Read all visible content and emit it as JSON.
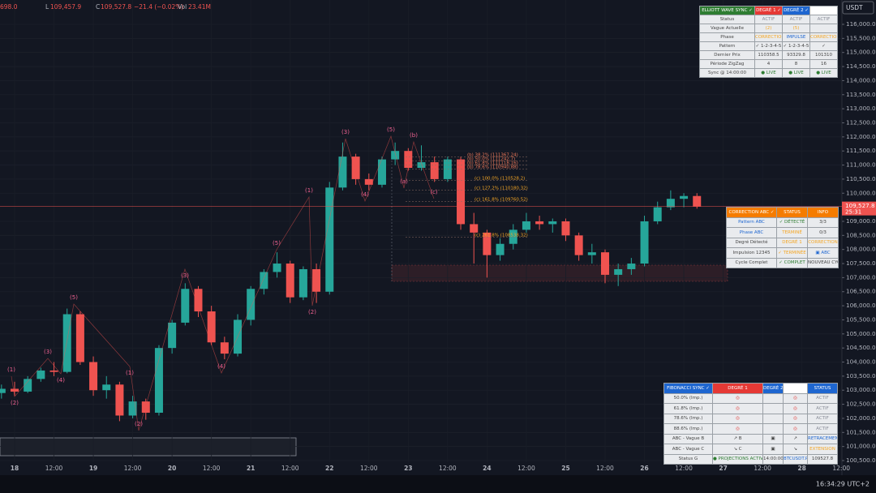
{
  "header": {
    "items": [
      "698.0",
      "L",
      "109,457.9",
      "C",
      "109,527.8",
      "−21.4 (−0.02%)",
      "Vol",
      "23.41M"
    ]
  },
  "currency": "USDT",
  "clock": "16:34:29 UTC+2",
  "chart_data": {
    "type": "candlestick",
    "x": [
      -4,
      0,
      4,
      8,
      12,
      16,
      20,
      24,
      28,
      32,
      36,
      40,
      44,
      48,
      52,
      56,
      60,
      64,
      68,
      72,
      76,
      80,
      84,
      88,
      92,
      96,
      100,
      104,
      108,
      112,
      116,
      120,
      124,
      128,
      132,
      136,
      140,
      144,
      148,
      152,
      156,
      160,
      164,
      168,
      172,
      176,
      180,
      184,
      188,
      192,
      196,
      200,
      204,
      208
    ],
    "open": [
      102900,
      103050,
      102950,
      103400,
      103700,
      103650,
      105700,
      104000,
      103000,
      103200,
      102100,
      102600,
      102200,
      104500,
      105400,
      106600,
      105800,
      104700,
      104300,
      105500,
      106600,
      107200,
      107500,
      106300,
      107300,
      106500,
      110200,
      111300,
      110500,
      110300,
      111200,
      111500,
      110900,
      111100,
      110500,
      111200,
      108900,
      108600,
      107800,
      108200,
      108700,
      109000,
      108900,
      109000,
      108500,
      107800,
      107900,
      107100,
      107300,
      107500,
      109000,
      109500,
      109800,
      109900
    ],
    "high": [
      103200,
      103300,
      103500,
      103800,
      104000,
      105900,
      105800,
      104200,
      103500,
      103300,
      102800,
      102700,
      104600,
      105500,
      106800,
      106700,
      106000,
      104900,
      105700,
      106700,
      107300,
      107900,
      107600,
      107400,
      107500,
      110400,
      111800,
      111400,
      110700,
      111300,
      111800,
      111600,
      111700,
      111300,
      111300,
      111300,
      109300,
      108700,
      108400,
      108900,
      109300,
      109200,
      109100,
      109100,
      108600,
      108200,
      108000,
      107500,
      107700,
      109200,
      109700,
      110100,
      110000,
      110000
    ],
    "low": [
      102700,
      102800,
      102900,
      103300,
      103500,
      103600,
      103900,
      102800,
      102700,
      101900,
      102000,
      101950,
      102100,
      104300,
      105300,
      105600,
      104600,
      104100,
      104200,
      105300,
      106400,
      107000,
      106100,
      106200,
      106100,
      106400,
      110100,
      110300,
      110100,
      110200,
      111000,
      110800,
      110800,
      110400,
      110400,
      108700,
      107500,
      107000,
      107600,
      108000,
      108600,
      108700,
      108600,
      108300,
      107600,
      107500,
      106800,
      106700,
      107100,
      107400,
      108900,
      109400,
      109500,
      109450
    ],
    "close": [
      103050,
      102950,
      103400,
      103700,
      103650,
      105700,
      104000,
      103000,
      103200,
      102100,
      102600,
      102200,
      104500,
      105400,
      106600,
      105800,
      104700,
      104300,
      105500,
      106600,
      107200,
      107500,
      106300,
      107300,
      106500,
      110200,
      111300,
      110500,
      110300,
      111200,
      111500,
      110900,
      111100,
      110500,
      111200,
      108900,
      108600,
      107800,
      108200,
      108700,
      109000,
      108900,
      109000,
      108500,
      107800,
      107900,
      107100,
      107300,
      107500,
      109000,
      109500,
      109800,
      109900,
      109528
    ],
    "up_color": "#26a69a",
    "down_color": "#ef5350",
    "xlim": [
      -4.45,
      252.2
    ],
    "xticks": [
      {
        "value": 0,
        "label": "18"
      },
      {
        "value": 12,
        "label": "12:00"
      },
      {
        "value": 24,
        "label": "19"
      },
      {
        "value": 36,
        "label": "12:00"
      },
      {
        "value": 48,
        "label": "20"
      },
      {
        "value": 60,
        "label": "12:00"
      },
      {
        "value": 72,
        "label": "21"
      },
      {
        "value": 84,
        "label": "12:00"
      },
      {
        "value": 96,
        "label": "22"
      },
      {
        "value": 108,
        "label": "12:00"
      },
      {
        "value": 120,
        "label": "23"
      },
      {
        "value": 132,
        "label": "12:00"
      },
      {
        "value": 144,
        "label": "24"
      },
      {
        "value": 156,
        "label": "12:00"
      },
      {
        "value": 168,
        "label": "25"
      },
      {
        "value": 180,
        "label": "12:00"
      },
      {
        "value": 192,
        "label": "26"
      },
      {
        "value": 204,
        "label": "12:00"
      },
      {
        "value": 216,
        "label": "27"
      },
      {
        "value": 228,
        "label": "12:00"
      },
      {
        "value": 240,
        "label": "28"
      },
      {
        "value": 252,
        "label": "12:00"
      }
    ],
    "ylim": [
      100212,
      116864
    ],
    "yticks": [
      {
        "value": 116000,
        "label": "116,000.0"
      },
      {
        "value": 115500,
        "label": "115,500.0"
      },
      {
        "value": 115000,
        "label": "115,000.0"
      },
      {
        "value": 114500,
        "label": "114,500.0"
      },
      {
        "value": 114000,
        "label": "114,000.0"
      },
      {
        "value": 113500,
        "label": "113,500.0"
      },
      {
        "value": 113000,
        "label": "113,000.0"
      },
      {
        "value": 112500,
        "label": "112,500.0"
      },
      {
        "value": 112000,
        "label": "112,000.0"
      },
      {
        "value": 111500,
        "label": "111,500.0"
      },
      {
        "value": 111000,
        "label": "111,000.0"
      },
      {
        "value": 110500,
        "label": "110,500.0"
      },
      {
        "value": 110000,
        "label": "110,000.0"
      },
      {
        "value": 109000,
        "label": "109,000.0"
      },
      {
        "value": 108500,
        "label": "108,500.0"
      },
      {
        "value": 108000,
        "label": "108,000.0"
      },
      {
        "value": 107500,
        "label": "107,500.0"
      },
      {
        "value": 107000,
        "label": "107,000.0"
      },
      {
        "value": 106500,
        "label": "106,500.0"
      },
      {
        "value": 106000,
        "label": "106,000.0"
      },
      {
        "value": 105500,
        "label": "105,500.0"
      },
      {
        "value": 105000,
        "label": "105,000.0"
      },
      {
        "value": 104500,
        "label": "104,500.0"
      },
      {
        "value": 104000,
        "label": "104,000.0"
      },
      {
        "value": 103500,
        "label": "103,500.0"
      },
      {
        "value": 103000,
        "label": "103,000.0"
      },
      {
        "value": 102500,
        "label": "102,500.0"
      },
      {
        "value": 102000,
        "label": "102,000.0"
      },
      {
        "value": 101500,
        "label": "101,500.0"
      },
      {
        "value": 101000,
        "label": "101,000.0"
      },
      {
        "value": 100500,
        "label": "100,500.0"
      }
    ],
    "grid": true,
    "last_price": {
      "value": 109527.8,
      "label": "109,527.8"
    },
    "countdown": "25:31",
    "wave_labels": [
      "(1)",
      "(2)",
      "(3)",
      "(4)",
      "(5)",
      "(1)",
      "(2)",
      "(3)",
      "(4)",
      "(5)",
      "(1)",
      "(2)",
      "(3)",
      "(4)",
      "(5)",
      "(a)",
      "(b)",
      "(c)"
    ],
    "fib_labels": [
      "(b) 38.2% (111367.24)",
      "(b) 50.0% (111242.7)",
      "(b) 61.8% (111118.16)",
      "(b) 78.6% (110940.88)",
      "(c) 100.0% (110528.2)",
      "(c) 127.2% (110180.32)",
      "(c) 161.8% (109760.52)",
      "(c) 261.8% (108538.32)"
    ]
  },
  "elliott_table": {
    "header": [
      "ELLIOTT WAVE SYNC ✓",
      "DEGRÉ 1 ✓",
      "DEGRÉ 2 ✓",
      null
    ],
    "rows": [
      [
        "Status",
        "ACTIF",
        "ACTIF",
        "ACTIF"
      ],
      [
        "Vague Actuelle",
        "(2)",
        "(5)",
        null
      ],
      [
        "Phase",
        "CORRECTION",
        "IMPULSE",
        "CORRECTION"
      ],
      [
        "Pattern",
        "✓ 1-2-3-4-5",
        "✓ 1-2-3-4-5",
        "✓"
      ],
      [
        "Dernier Prix",
        "110358.5",
        "93329.8",
        "101310"
      ],
      [
        "Période ZigZag",
        "4",
        "8",
        "16"
      ],
      [
        "Sync @ 14:00:00",
        "● LIVE",
        "● LIVE",
        "● LIVE"
      ]
    ]
  },
  "abc_table": {
    "header": [
      "CORRECTION ABC ✓",
      "STATUS",
      "INFO"
    ],
    "rows": [
      [
        "Pattern ABC",
        "✓ DÉTECTÉ",
        "3/3"
      ],
      [
        "Phase ABC",
        "TERMINÉ",
        "0/3"
      ],
      [
        "Degré Détecté",
        "DEGRÉ 1",
        "CORRECTION"
      ],
      [
        "Impulsion 12345",
        "✓ TERMINÉE",
        "▣ ABC"
      ],
      [
        "Cycle Complet",
        "✓ COMPLET",
        "NOUVEAU CYCLE"
      ]
    ]
  },
  "fib_table": {
    "header": [
      "FIBONACCI SYNC ✓",
      "DEGRÉ 1",
      "DEGRÉ 2",
      null,
      "STATUS"
    ],
    "rows": [
      [
        "50.0% (Imp.)",
        "◎",
        null,
        "◎",
        "ACTIF"
      ],
      [
        "61.8% (Imp.)",
        "◎",
        null,
        "◎",
        "ACTIF"
      ],
      [
        "78.6% (Imp.)",
        "◎",
        null,
        "◎",
        "ACTIF"
      ],
      [
        "88.6% (Imp.)",
        "◎",
        null,
        "◎",
        "ACTIF"
      ],
      [
        "ABC - Vague B",
        "↗ B",
        "▣",
        "↗",
        "RETRACEMENT"
      ],
      [
        "ABC - Vague C",
        "↘ C",
        "▣",
        "↘",
        "EXTENSION"
      ],
      [
        "Status G",
        "● PROJECTIONS ACTIVES",
        "14:00:00",
        "BTCUSDT.P",
        "109527.8"
      ]
    ]
  }
}
